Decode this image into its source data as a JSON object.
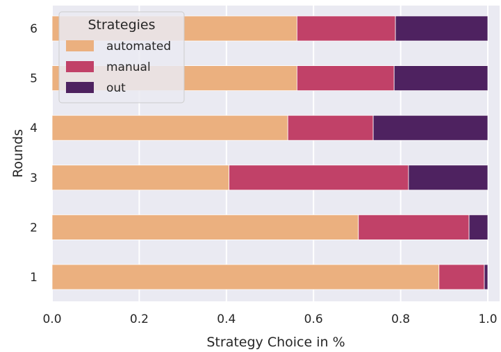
{
  "chart_data": {
    "type": "bar",
    "orientation": "horizontal",
    "stacked": true,
    "categories": [
      "1",
      "2",
      "3",
      "4",
      "5",
      "6"
    ],
    "series": [
      {
        "name": "automated",
        "color": "#ebb07f",
        "values": [
          0.888,
          0.703,
          0.406,
          0.541,
          0.562,
          0.562
        ]
      },
      {
        "name": "manual",
        "color": "#c14168",
        "values": [
          0.104,
          0.254,
          0.412,
          0.196,
          0.223,
          0.226
        ]
      },
      {
        "name": "out",
        "color": "#4e2260",
        "values": [
          0.008,
          0.043,
          0.182,
          0.263,
          0.215,
          0.212
        ]
      }
    ],
    "xlabel": "Strategy Choice in %",
    "ylabel": "Rounds",
    "xlim": [
      0,
      1.0
    ],
    "xticks": [
      "0.0",
      "0.2",
      "0.4",
      "0.6",
      "0.8",
      "1.0"
    ],
    "xtick_values": [
      0,
      0.2,
      0.4,
      0.6,
      0.8,
      1.0
    ],
    "grid": true,
    "legend": {
      "title": "Strategies",
      "placement": "top-left"
    },
    "background_color": "#eaeaf2"
  }
}
